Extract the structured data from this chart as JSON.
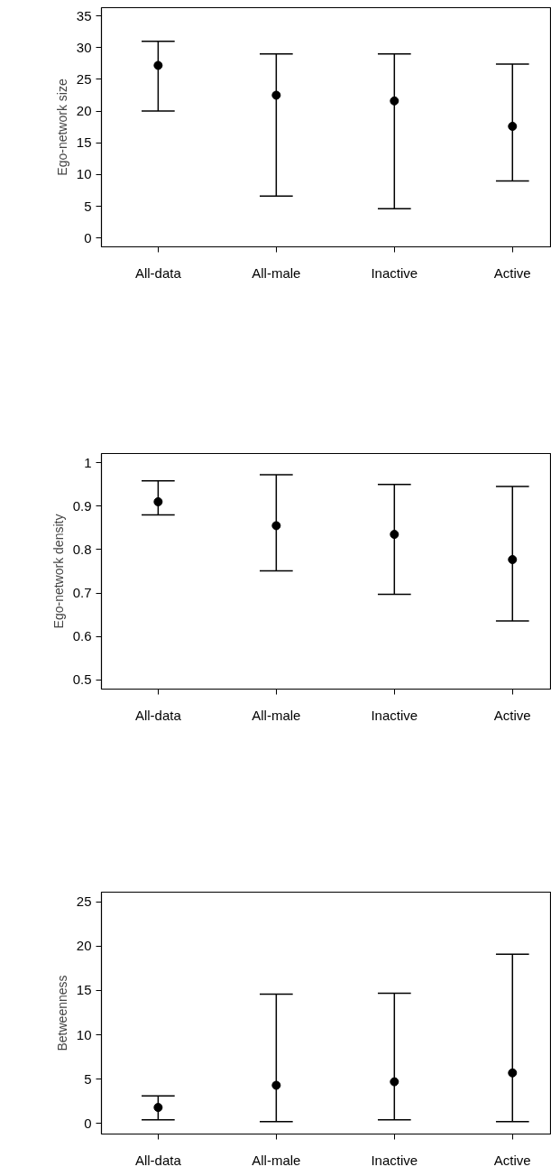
{
  "chart_data": [
    {
      "type": "scatter",
      "categories": [
        "All-data",
        "All-male",
        "Inactive",
        "Active"
      ],
      "ylabel": "Ego-network size",
      "color": "#000000",
      "marker": "circle",
      "grid": false,
      "values": [
        27.2,
        22.5,
        21.6,
        17.6
      ],
      "errors": [
        [
          20,
          31
        ],
        [
          6.6,
          29
        ],
        [
          4.6,
          29
        ],
        [
          9,
          27.4
        ]
      ],
      "ylim": [
        -1.4,
        36.3
      ],
      "yticks": [
        0,
        5,
        10,
        15,
        20,
        25,
        30,
        35
      ]
    },
    {
      "type": "scatter",
      "categories": [
        "All-data",
        "All-male",
        "Inactive",
        "Active"
      ],
      "ylabel": "Ego-network density",
      "color": "#000000",
      "marker": "circle",
      "grid": false,
      "values": [
        0.91,
        0.855,
        0.835,
        0.777
      ],
      "errors": [
        [
          0.88,
          0.958
        ],
        [
          0.751,
          0.972
        ],
        [
          0.697,
          0.95
        ],
        [
          0.636,
          0.945
        ]
      ],
      "ylim": [
        0.479,
        1.021
      ],
      "yticks": [
        0.5,
        0.6,
        0.7,
        0.8,
        0.9,
        1
      ]
    },
    {
      "type": "scatter",
      "categories": [
        "All-data",
        "All-male",
        "Inactive",
        "Active"
      ],
      "ylabel": "Betweenness",
      "color": "#000000",
      "marker": "circle",
      "grid": false,
      "values": [
        1.8,
        4.3,
        4.7,
        5.7
      ],
      "errors": [
        [
          0.4,
          3.1
        ],
        [
          0.2,
          14.6
        ],
        [
          0.4,
          14.7
        ],
        [
          0.2,
          19.1
        ]
      ],
      "ylim": [
        -1.2,
        26.1
      ],
      "yticks": [
        0,
        5,
        10,
        15,
        20,
        25
      ]
    }
  ]
}
